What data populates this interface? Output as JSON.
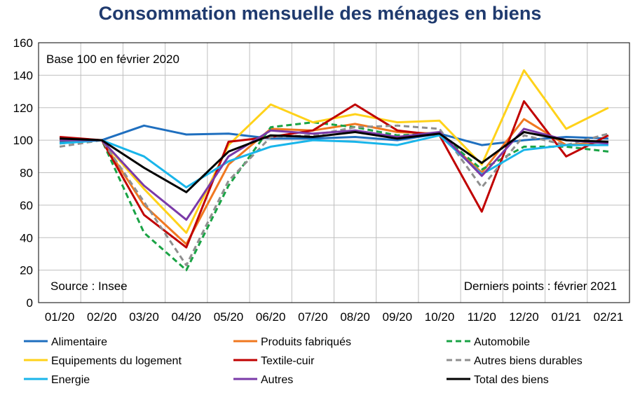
{
  "chart_data": {
    "type": "line",
    "title": "Consommation mensuelle des ménages en biens",
    "annotations": {
      "base": "Base 100 en février 2020",
      "source": "Source : Insee",
      "last_point": "Derniers points : février 2021"
    },
    "categories": [
      "01/20",
      "02/20",
      "03/20",
      "04/20",
      "05/20",
      "06/20",
      "07/20",
      "08/20",
      "09/20",
      "10/20",
      "11/20",
      "12/20",
      "01/21",
      "02/21"
    ],
    "ylim": [
      0,
      160
    ],
    "yticks": [
      0,
      20,
      40,
      60,
      80,
      100,
      120,
      140,
      160
    ],
    "grid": true,
    "legend_position": "bottom",
    "series": [
      {
        "name": "Alimentaire",
        "color": "#1f6fbf",
        "dash": "solid",
        "values": [
          99,
          100,
          109,
          103.5,
          104,
          101,
          101,
          102,
          100,
          104,
          97,
          100,
          102,
          101
        ]
      },
      {
        "name": "Produits fabriqués",
        "color": "#f07820",
        "dash": "solid",
        "values": [
          100,
          100,
          60,
          36,
          85,
          107,
          106,
          110,
          105,
          104,
          80,
          113,
          97,
          99
        ]
      },
      {
        "name": "Automobile",
        "color": "#1aa345",
        "dash": "dashed",
        "values": [
          98,
          100,
          43,
          20,
          72,
          108,
          111,
          108,
          103,
          104,
          82,
          96,
          96,
          93
        ]
      },
      {
        "name": "Equipements du logement",
        "color": "#ffd21a",
        "dash": "solid",
        "values": [
          100,
          100,
          70,
          43,
          97,
          122,
          111,
          116,
          111,
          112,
          85,
          143,
          107,
          120
        ]
      },
      {
        "name": "Textile-cuir",
        "color": "#c00000",
        "dash": "solid",
        "values": [
          102,
          100,
          54,
          34,
          99,
          102,
          106,
          122,
          106,
          103,
          56,
          124,
          90,
          103
        ]
      },
      {
        "name": "Autres biens durables",
        "color": "#8f8f8f",
        "dash": "dashed",
        "values": [
          96,
          100,
          62,
          23,
          75,
          102,
          103,
          108,
          109,
          107,
          71,
          103,
          97,
          104
        ]
      },
      {
        "name": "Energie",
        "color": "#19b5ea",
        "dash": "solid",
        "values": [
          98,
          100,
          90,
          71,
          87,
          96,
          100,
          99,
          97,
          103,
          79,
          94,
          97,
          97
        ]
      },
      {
        "name": "Autres",
        "color": "#7a3aa8",
        "dash": "solid",
        "values": [
          100,
          100,
          72,
          51,
          90,
          106,
          104,
          106,
          102,
          105,
          78,
          107,
          100,
          98
        ]
      },
      {
        "name": "Total des biens",
        "color": "#000000",
        "dash": "solid",
        "values": [
          101,
          100,
          83,
          68,
          93,
          103,
          102,
          105,
          101,
          104,
          86,
          105,
          100,
          99
        ]
      }
    ]
  }
}
